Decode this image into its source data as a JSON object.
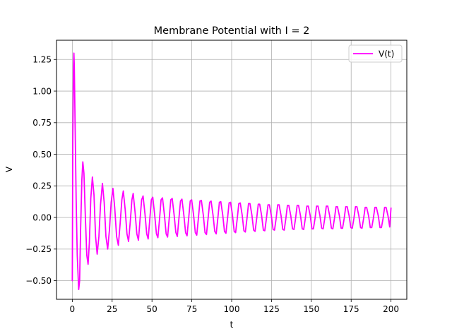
{
  "chart_data": {
    "type": "line",
    "title": "Membrane Potential with I = 2",
    "xlabel": "t",
    "ylabel": "V",
    "xlim": [
      -9.92,
      209.92
    ],
    "ylim": [
      -0.6474,
      1.4024
    ],
    "grid": true,
    "legend_position": "upper-right",
    "x_ticks": [
      0,
      25,
      50,
      75,
      100,
      125,
      150,
      175,
      200
    ],
    "x_tick_labels": [
      "0",
      "25",
      "50",
      "75",
      "100",
      "125",
      "150",
      "175",
      "200"
    ],
    "y_ticks": [
      -0.5,
      -0.25,
      0.0,
      0.25,
      0.5,
      0.75,
      1.0,
      1.25
    ],
    "y_tick_labels": [
      "−0.50",
      "−0.25",
      "0.00",
      "0.25",
      "0.50",
      "0.75",
      "1.00",
      "1.25"
    ],
    "series": [
      {
        "name": "V(t)",
        "color": "#ff00ff",
        "points": [
          [
            0.0,
            -0.5
          ],
          [
            0.3,
            0.6
          ],
          [
            0.75,
            1.2
          ],
          [
            1.0,
            1.3
          ],
          [
            1.25,
            1.2
          ],
          [
            1.8,
            0.7
          ],
          [
            2.4,
            0.15
          ],
          [
            3.1,
            -0.3
          ],
          [
            4.0,
            -0.57
          ],
          [
            4.6,
            -0.5
          ],
          [
            5.2,
            -0.1
          ],
          [
            6.0,
            0.3
          ],
          [
            6.6,
            0.44
          ],
          [
            7.3,
            0.35
          ],
          [
            8.2,
            0.0
          ],
          [
            9.1,
            -0.3
          ],
          [
            9.9,
            -0.37
          ],
          [
            10.7,
            -0.2
          ],
          [
            11.6,
            0.15
          ],
          [
            12.6,
            0.32
          ],
          [
            13.6,
            0.18
          ],
          [
            14.6,
            -0.15
          ],
          [
            15.6,
            -0.29
          ],
          [
            16.7,
            -0.15
          ],
          [
            17.7,
            0.1
          ],
          [
            18.9,
            0.27
          ],
          [
            20.0,
            0.12
          ],
          [
            21.1,
            -0.15
          ],
          [
            22.2,
            -0.25
          ],
          [
            23.3,
            -0.1
          ],
          [
            24.4,
            0.12
          ],
          [
            25.5,
            0.23
          ],
          [
            26.6,
            0.08
          ],
          [
            27.8,
            -0.15
          ],
          [
            28.9,
            -0.22
          ],
          [
            30.0,
            -0.05
          ],
          [
            31.1,
            0.14
          ],
          [
            32.0,
            0.21
          ],
          [
            33.2,
            0.06
          ],
          [
            34.3,
            -0.13
          ],
          [
            35.3,
            -0.19
          ],
          [
            36.4,
            -0.03
          ],
          [
            37.4,
            0.14
          ],
          [
            38.2,
            0.19
          ],
          [
            39.4,
            0.04
          ],
          [
            40.5,
            -0.13
          ],
          [
            41.5,
            -0.18
          ],
          [
            42.5,
            -0.02
          ],
          [
            43.5,
            0.14
          ],
          [
            44.4,
            0.17
          ],
          [
            45.6,
            0.03
          ],
          [
            46.7,
            -0.13
          ],
          [
            47.6,
            -0.17
          ],
          [
            48.6,
            -0.02
          ],
          [
            49.6,
            0.14
          ],
          [
            50.5,
            0.16
          ],
          [
            51.7,
            0.02
          ],
          [
            52.8,
            -0.13
          ],
          [
            53.7,
            -0.16
          ],
          [
            54.7,
            -0.02
          ],
          [
            55.7,
            0.14
          ],
          [
            56.6,
            0.155
          ],
          [
            57.8,
            0.02
          ],
          [
            58.9,
            -0.13
          ],
          [
            59.8,
            -0.155
          ],
          [
            60.8,
            -0.01
          ],
          [
            61.8,
            0.14
          ],
          [
            62.7,
            0.15
          ],
          [
            63.9,
            0.02
          ],
          [
            65.0,
            -0.12
          ],
          [
            65.9,
            -0.15
          ],
          [
            66.9,
            -0.01
          ],
          [
            67.9,
            0.13
          ],
          [
            68.8,
            0.145
          ],
          [
            70.0,
            0.02
          ],
          [
            71.1,
            -0.12
          ],
          [
            72.0,
            -0.145
          ],
          [
            73.0,
            -0.01
          ],
          [
            74.0,
            0.13
          ],
          [
            74.9,
            0.14
          ],
          [
            76.1,
            0.02
          ],
          [
            77.2,
            -0.12
          ],
          [
            78.1,
            -0.14
          ],
          [
            79.1,
            -0.01
          ],
          [
            80.1,
            0.13
          ],
          [
            81.0,
            0.135
          ],
          [
            82.2,
            0.02
          ],
          [
            83.3,
            -0.12
          ],
          [
            84.2,
            -0.135
          ],
          [
            85.2,
            -0.01
          ],
          [
            86.2,
            0.12
          ],
          [
            87.1,
            0.13
          ],
          [
            88.3,
            0.02
          ],
          [
            89.4,
            -0.11
          ],
          [
            90.3,
            -0.13
          ],
          [
            91.3,
            -0.01
          ],
          [
            92.3,
            0.12
          ],
          [
            93.2,
            0.125
          ],
          [
            94.4,
            0.02
          ],
          [
            95.5,
            -0.11
          ],
          [
            96.4,
            -0.125
          ],
          [
            97.4,
            -0.01
          ],
          [
            98.4,
            0.115
          ],
          [
            99.3,
            0.12
          ],
          [
            100.5,
            0.02
          ],
          [
            101.6,
            -0.11
          ],
          [
            102.5,
            -0.12
          ],
          [
            103.5,
            -0.01
          ],
          [
            104.5,
            0.11
          ],
          [
            105.4,
            0.115
          ],
          [
            106.6,
            0.02
          ],
          [
            107.7,
            -0.105
          ],
          [
            108.6,
            -0.115
          ],
          [
            109.6,
            -0.01
          ],
          [
            110.6,
            0.11
          ],
          [
            111.5,
            0.11
          ],
          [
            112.7,
            0.02
          ],
          [
            113.8,
            -0.1
          ],
          [
            114.7,
            -0.11
          ],
          [
            115.7,
            -0.01
          ],
          [
            116.7,
            0.105
          ],
          [
            117.6,
            0.105
          ],
          [
            118.8,
            0.015
          ],
          [
            119.9,
            -0.1
          ],
          [
            120.8,
            -0.105
          ],
          [
            121.8,
            -0.01
          ],
          [
            122.8,
            0.1
          ],
          [
            123.7,
            0.1
          ],
          [
            124.9,
            0.015
          ],
          [
            126.0,
            -0.095
          ],
          [
            126.9,
            -0.1
          ],
          [
            127.9,
            -0.01
          ],
          [
            128.9,
            0.1
          ],
          [
            129.8,
            0.1
          ],
          [
            131.0,
            0.015
          ],
          [
            132.1,
            -0.095
          ],
          [
            133.0,
            -0.1
          ],
          [
            134.0,
            -0.01
          ],
          [
            135.0,
            0.095
          ],
          [
            135.9,
            0.095
          ],
          [
            137.1,
            0.015
          ],
          [
            138.2,
            -0.09
          ],
          [
            139.1,
            -0.095
          ],
          [
            140.1,
            -0.01
          ],
          [
            141.1,
            0.095
          ],
          [
            142.0,
            0.095
          ],
          [
            143.2,
            0.015
          ],
          [
            144.3,
            -0.09
          ],
          [
            145.2,
            -0.095
          ],
          [
            146.2,
            -0.01
          ],
          [
            147.2,
            0.09
          ],
          [
            148.1,
            0.09
          ],
          [
            149.3,
            0.015
          ],
          [
            150.4,
            -0.09
          ],
          [
            151.3,
            -0.09
          ],
          [
            152.3,
            -0.01
          ],
          [
            153.3,
            0.09
          ],
          [
            154.2,
            0.09
          ],
          [
            155.4,
            0.015
          ],
          [
            156.5,
            -0.085
          ],
          [
            157.4,
            -0.09
          ],
          [
            158.4,
            -0.01
          ],
          [
            159.4,
            0.09
          ],
          [
            160.3,
            0.09
          ],
          [
            161.5,
            0.015
          ],
          [
            162.6,
            -0.085
          ],
          [
            163.5,
            -0.09
          ],
          [
            164.5,
            -0.01
          ],
          [
            165.5,
            0.085
          ],
          [
            166.4,
            0.085
          ],
          [
            167.6,
            0.015
          ],
          [
            168.7,
            -0.085
          ],
          [
            169.6,
            -0.085
          ],
          [
            170.6,
            -0.01
          ],
          [
            171.6,
            0.085
          ],
          [
            172.5,
            0.085
          ],
          [
            173.7,
            0.015
          ],
          [
            174.8,
            -0.08
          ],
          [
            175.7,
            -0.085
          ],
          [
            176.7,
            -0.01
          ],
          [
            177.7,
            0.085
          ],
          [
            178.6,
            0.085
          ],
          [
            179.8,
            0.015
          ],
          [
            180.9,
            -0.08
          ],
          [
            181.8,
            -0.085
          ],
          [
            182.8,
            -0.01
          ],
          [
            183.8,
            0.08
          ],
          [
            184.7,
            0.08
          ],
          [
            185.9,
            0.015
          ],
          [
            187.0,
            -0.08
          ],
          [
            187.9,
            -0.08
          ],
          [
            188.9,
            -0.01
          ],
          [
            189.9,
            0.08
          ],
          [
            190.8,
            0.08
          ],
          [
            192.0,
            0.015
          ],
          [
            193.1,
            -0.08
          ],
          [
            194.0,
            -0.08
          ],
          [
            195.0,
            -0.01
          ],
          [
            196.0,
            0.08
          ],
          [
            196.9,
            0.08
          ],
          [
            198.1,
            0.015
          ],
          [
            199.2,
            -0.075
          ],
          [
            200.0,
            0.075
          ]
        ]
      }
    ]
  }
}
